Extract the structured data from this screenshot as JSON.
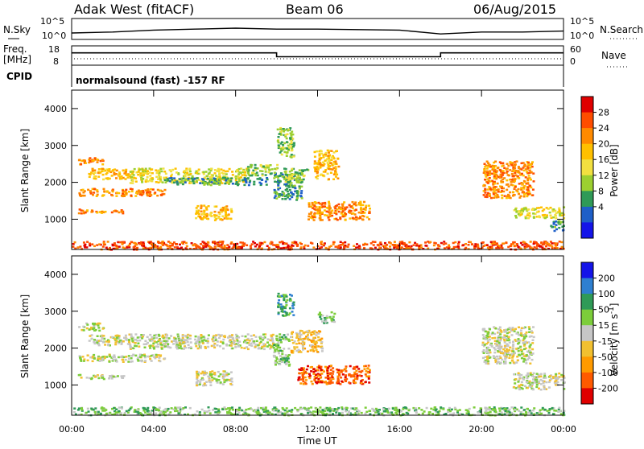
{
  "header": {
    "radar": "Adak West (fitACF)",
    "beam": "Beam 06",
    "date": "06/Aug/2015"
  },
  "panel_noise": {
    "left_label": "N.Sky",
    "right_label": "N.Search",
    "left_ticks": [
      "10^5",
      "10^0"
    ],
    "right_ticks": [
      "10^5",
      "10^0"
    ]
  },
  "panel_freq": {
    "left_label_1": "Freq.",
    "left_label_2": "[MHz]",
    "right_label": "Nave",
    "left_ticks": [
      "18",
      "8"
    ],
    "right_ticks": [
      "60",
      "0"
    ]
  },
  "panel_cpid": {
    "label": "CPID",
    "text": "normalsound (fast) -157 RF"
  },
  "chart_data": [
    {
      "type": "line",
      "name": "noise",
      "x": [
        0,
        2,
        4,
        6,
        8,
        10,
        12,
        14,
        16,
        18,
        20,
        22,
        24
      ],
      "series": [
        {
          "name": "N.Sky",
          "values": [
            0.5,
            0.6,
            0.8,
            0.9,
            1.0,
            0.9,
            0.9,
            0.85,
            0.8,
            0.4,
            0.6,
            0.6,
            0.7
          ]
        }
      ],
      "yticks_left": [
        "10^5",
        "10^0"
      ],
      "yticks_right": [
        "10^5",
        "10^0"
      ]
    },
    {
      "type": "line",
      "name": "frequency",
      "x": [
        0,
        10,
        10,
        18,
        18,
        24
      ],
      "series": [
        {
          "name": "Freq.",
          "values": [
            14.5,
            14.5,
            12.3,
            12.3,
            14.5,
            14.5
          ]
        }
      ],
      "ylim": [
        8,
        18
      ],
      "right_ylim": [
        0,
        60
      ]
    },
    {
      "type": "heatmap",
      "name": "power",
      "xlabel": "",
      "ylabel": "Slant Range [km]",
      "xlim": [
        0,
        24
      ],
      "ylim": [
        180,
        4500
      ],
      "yticks": [
        1000,
        2000,
        3000,
        4000
      ],
      "colorbar": {
        "label": "Power [dB]",
        "ticks": [
          "28",
          "24",
          "20",
          "16",
          "12",
          "8",
          "4"
        ],
        "colors": [
          "#e00000",
          "#ff4d00",
          "#ff8a00",
          "#ffc000",
          "#f2e040",
          "#9ccf30",
          "#2f9a57",
          "#1e5fc8",
          "#1414e8"
        ]
      },
      "features": [
        {
          "t": [
            0.3,
            1.5
          ],
          "r": [
            2500,
            2700
          ],
          "c": 2
        },
        {
          "t": [
            0.8,
            2.8
          ],
          "r": [
            2100,
            2400
          ],
          "c": 3
        },
        {
          "t": [
            2.8,
            8.5
          ],
          "r": [
            2000,
            2400
          ],
          "c": 4
        },
        {
          "t": [
            4.5,
            9.5
          ],
          "r": [
            1950,
            2150
          ],
          "c": 6
        },
        {
          "t": [
            8.5,
            10.0
          ],
          "r": [
            2200,
            2500
          ],
          "c": 5
        },
        {
          "t": [
            0.3,
            4.5
          ],
          "r": [
            1650,
            1850
          ],
          "c": 2
        },
        {
          "t": [
            0.3,
            2.5
          ],
          "r": [
            1180,
            1300
          ],
          "c": 2
        },
        {
          "t": [
            6.0,
            7.8
          ],
          "r": [
            1000,
            1400
          ],
          "c": 3
        },
        {
          "t": [
            9.8,
            11.2
          ],
          "r": [
            1550,
            2300
          ],
          "c": 6
        },
        {
          "t": [
            10.3,
            11.5
          ],
          "r": [
            2000,
            2400
          ],
          "c": 5
        },
        {
          "t": [
            10.0,
            10.8
          ],
          "r": [
            2700,
            3500
          ],
          "c": 5
        },
        {
          "t": [
            11.5,
            14.5
          ],
          "r": [
            1000,
            1500
          ],
          "c": 2
        },
        {
          "t": [
            11.8,
            13.0
          ],
          "r": [
            2100,
            2900
          ],
          "c": 3
        },
        {
          "t": [
            20.0,
            22.5
          ],
          "r": [
            1600,
            2600
          ],
          "c": 2
        },
        {
          "t": [
            21.5,
            24.0
          ],
          "r": [
            1050,
            1350
          ],
          "c": 4
        },
        {
          "t": [
            23.3,
            24.0
          ],
          "r": [
            700,
            1000
          ],
          "c": 6
        },
        {
          "t": [
            0.0,
            24.0
          ],
          "r": [
            200,
            420
          ],
          "c": 1
        }
      ]
    },
    {
      "type": "heatmap",
      "name": "velocity",
      "xlabel": "Time UT",
      "ylabel": "Slant Range [km]",
      "xlim": [
        0,
        24
      ],
      "ylim": [
        180,
        4500
      ],
      "xticks": [
        "00:00",
        "04:00",
        "08:00",
        "12:00",
        "16:00",
        "20:00",
        "00:00"
      ],
      "yticks": [
        1000,
        2000,
        3000,
        4000
      ],
      "colorbar": {
        "label": "Velocity [m s^-1]",
        "ticks": [
          "200",
          "100",
          "50",
          "15",
          "-15",
          "-50",
          "-100",
          "-200"
        ],
        "colors": [
          "#1414e8",
          "#2e7fd0",
          "#2f9a57",
          "#7ccd3a",
          "#c6c6c6",
          "#f2c030",
          "#ff9a00",
          "#ff5a00",
          "#e00000"
        ]
      },
      "features": [
        {
          "t": [
            0.3,
            1.5
          ],
          "r": [
            2500,
            2700
          ],
          "c": 4
        },
        {
          "t": [
            0.8,
            2.8
          ],
          "r": [
            2100,
            2400
          ],
          "c": 4
        },
        {
          "t": [
            2.8,
            9.8
          ],
          "r": [
            2000,
            2400
          ],
          "c": 4
        },
        {
          "t": [
            0.3,
            4.5
          ],
          "r": [
            1650,
            1850
          ],
          "c": 4
        },
        {
          "t": [
            0.3,
            2.5
          ],
          "r": [
            1180,
            1300
          ],
          "c": 4
        },
        {
          "t": [
            6.0,
            7.8
          ],
          "r": [
            1000,
            1400
          ],
          "c": 4
        },
        {
          "t": [
            9.8,
            10.6
          ],
          "r": [
            1550,
            2400
          ],
          "c": 3
        },
        {
          "t": [
            10.0,
            10.8
          ],
          "r": [
            2900,
            3500
          ],
          "c": 2
        },
        {
          "t": [
            10.6,
            12.2
          ],
          "r": [
            1900,
            2500
          ],
          "c": 5
        },
        {
          "t": [
            11.0,
            14.5
          ],
          "r": [
            1050,
            1550
          ],
          "c": 7
        },
        {
          "t": [
            12.0,
            12.8
          ],
          "r": [
            2700,
            3000
          ],
          "c": 3
        },
        {
          "t": [
            20.0,
            22.5
          ],
          "r": [
            1600,
            2600
          ],
          "c": 4
        },
        {
          "t": [
            21.5,
            24.0
          ],
          "r": [
            900,
            1350
          ],
          "c": 4
        },
        {
          "t": [
            0.0,
            24.0
          ],
          "r": [
            200,
            420
          ],
          "c": 3
        }
      ]
    }
  ]
}
